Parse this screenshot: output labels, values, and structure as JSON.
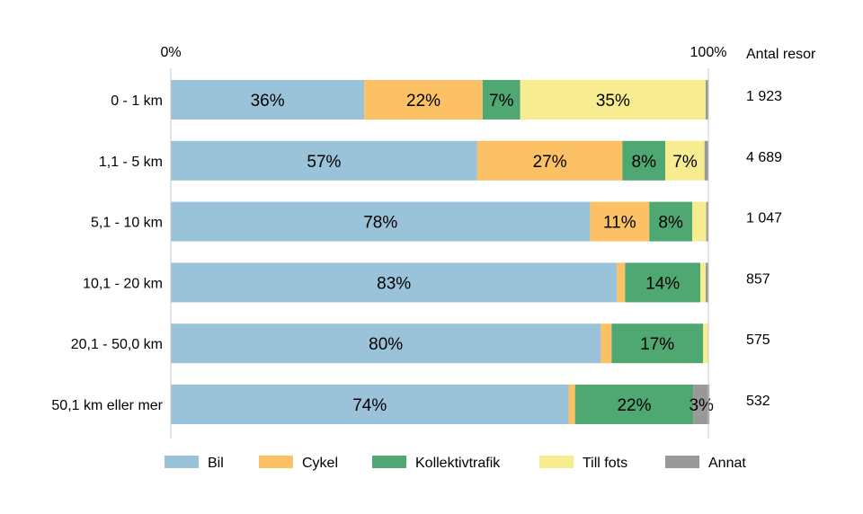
{
  "chart_data": {
    "type": "bar",
    "orientation": "horizontal",
    "stacked": true,
    "percent": true,
    "categories": [
      "0 - 1 km",
      "1,1 - 5 km",
      "5,1 - 10 km",
      "10,1 - 20 km",
      "20,1 - 50,0 km",
      "50,1 km eller mer"
    ],
    "series": [
      {
        "name": "Bil",
        "color": "#9ac3d9",
        "values": [
          36,
          57,
          78,
          83,
          80,
          74
        ]
      },
      {
        "name": "Cykel",
        "color": "#fbc164",
        "values": [
          22,
          27,
          11,
          1.5,
          2,
          1.2
        ]
      },
      {
        "name": "Kollektivtrafik",
        "color": "#4fa872",
        "values": [
          7,
          8,
          8,
          14,
          17,
          22
        ]
      },
      {
        "name": "Till fots",
        "color": "#f8ec90",
        "values": [
          34.5,
          7.3,
          2.6,
          1,
          1,
          0
        ]
      },
      {
        "name": "Annat",
        "color": "#999999",
        "values": [
          0.5,
          0.7,
          0.4,
          0.5,
          0,
          3
        ]
      }
    ],
    "labels": [
      [
        "36%",
        "22%",
        "7%",
        "35%",
        ""
      ],
      [
        "57%",
        "27%",
        "8%",
        "7%",
        ""
      ],
      [
        "78%",
        "11%",
        "8%",
        "",
        ""
      ],
      [
        "83%",
        "",
        "14%",
        "",
        ""
      ],
      [
        "80%",
        "",
        "17%",
        "",
        ""
      ],
      [
        "74%",
        "",
        "22%",
        "",
        "3%"
      ]
    ],
    "xlim": [
      0,
      100
    ],
    "xticks": [
      "0%",
      "100%"
    ],
    "right_column_title": "Antal resor",
    "right_column_values": [
      "1 923",
      "4 689",
      "1 047",
      "857",
      "575",
      "532"
    ],
    "legend_position": "bottom",
    "grid": false
  }
}
